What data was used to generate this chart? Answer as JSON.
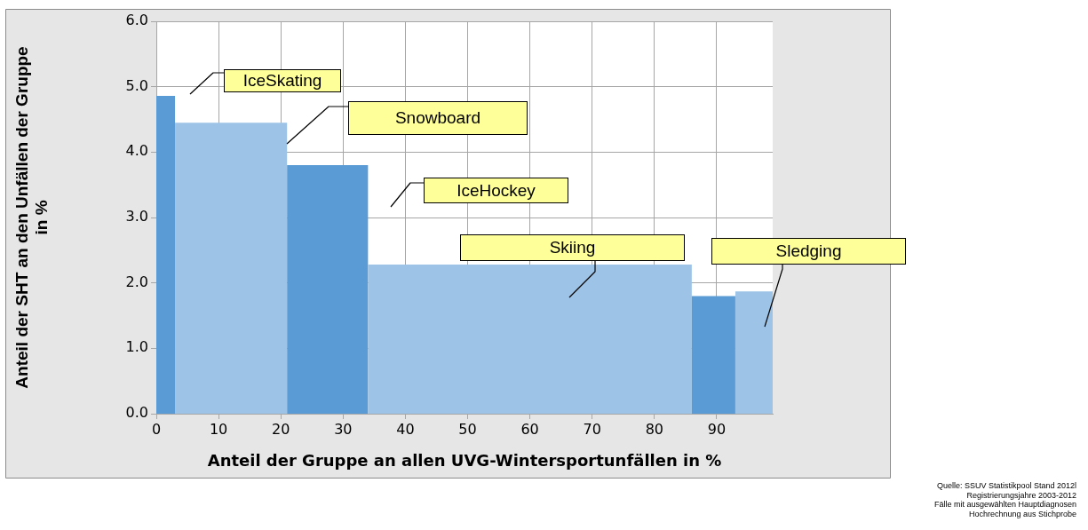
{
  "chart_data": {
    "type": "histogram",
    "xlabel": "Anteil der Gruppe an allen UVG-Wintersportunfällen in %",
    "ylabel": "Anteil der SHT an den Unfällen der Gruppe\nin %",
    "bins": [
      0,
      3,
      21,
      34,
      86,
      93,
      99
    ],
    "values": [
      4.86,
      4.45,
      3.8,
      2.28,
      1.8,
      1.87
    ],
    "colors": [
      "#5b9bd5",
      "#9dc3e6",
      "#5b9bd5",
      "#9dc3e6",
      "#5b9bd5",
      "#9dc3e6"
    ],
    "xlim": [
      0,
      99
    ],
    "xticks": [
      0,
      10,
      20,
      30,
      40,
      50,
      60,
      70,
      80,
      90
    ],
    "ylim": [
      0,
      6
    ],
    "yticks": [
      {
        "value": 0,
        "label": "0.0"
      },
      {
        "value": 1,
        "label": "1.0"
      },
      {
        "value": 2,
        "label": "2.0"
      },
      {
        "value": 3,
        "label": "3.0"
      },
      {
        "value": 4,
        "label": "4.0"
      },
      {
        "value": 5,
        "label": "5.0"
      },
      {
        "value": 6,
        "label": "6.0"
      }
    ],
    "grid": true,
    "annotations": [
      "IceSkating",
      "Snowboard",
      "IceHockey",
      "Skiing",
      "Sledging",
      "Quelle: SSUV Statistikpool Stand 2012l\nRegistrierungsjahre 2003-2012\nFälle mit ausgewählten Hauptdiagnosen\nHochrechnung aus Stichprobe"
    ]
  }
}
